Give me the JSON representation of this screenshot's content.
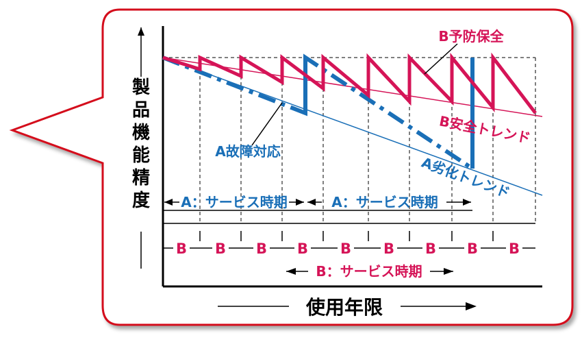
{
  "axes": {
    "y_label": [
      "製",
      "品",
      "機",
      "能",
      "精",
      "度"
    ],
    "x_label": "使用年限"
  },
  "labels": {
    "b_preventive": "B予防保全",
    "b_safety_trend": "B安全トレンド",
    "a_failure_response": "A故障対応",
    "a_degradation_trend": "A劣化トレンド",
    "a_service_period_1": "A：サービス時期",
    "a_service_period_2": "A：サービス時期",
    "b_service_period": "B：サービス時期",
    "b_marker": "B"
  },
  "b_markers": [
    "B",
    "B",
    "B",
    "B",
    "B",
    "B",
    "B",
    "B",
    "B"
  ],
  "colors": {
    "frame": "#d40f1b",
    "a_series": "#1a6fb7",
    "b_series": "#d51457",
    "ink": "#000000"
  }
}
